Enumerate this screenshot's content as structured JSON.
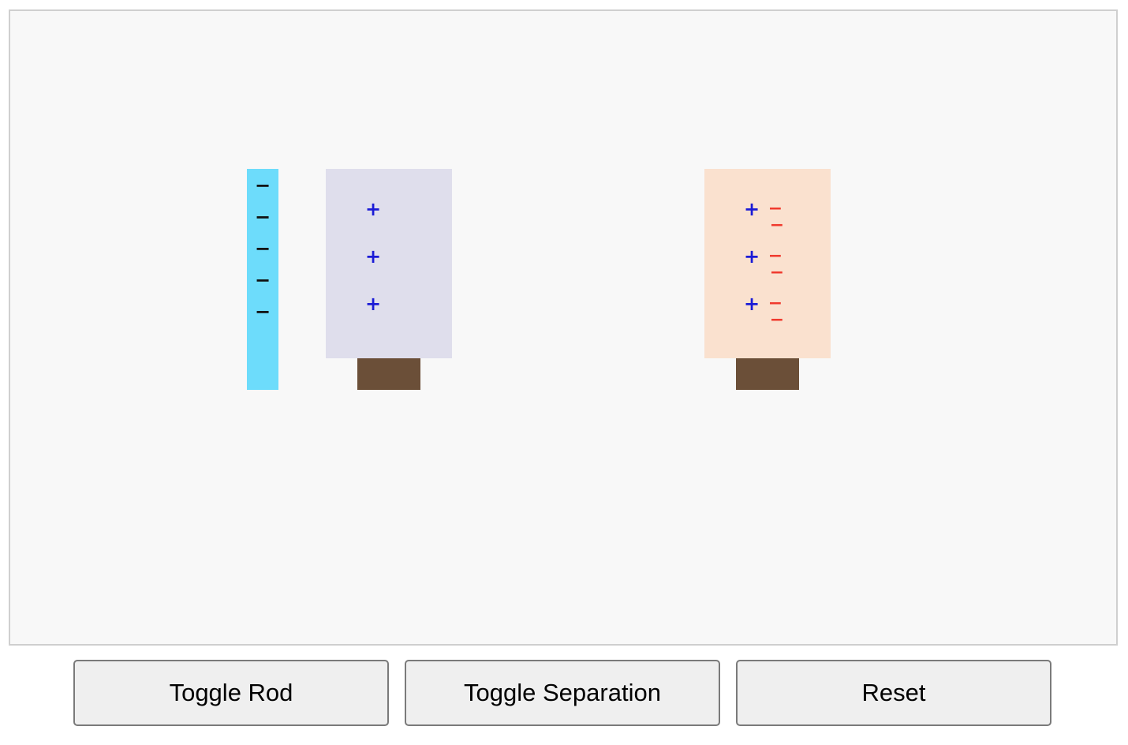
{
  "scene": {
    "rod": {
      "color": "#6ddcfb",
      "charge_color": "#111111",
      "charges": [
        "−",
        "−",
        "−",
        "−",
        "−"
      ]
    },
    "sphere_left": {
      "color": "#dfdeec",
      "charge_color": "#1b1bd6",
      "charges": [
        "+",
        "+",
        "+"
      ]
    },
    "sphere_right": {
      "color": "#fae1cf",
      "positive_color": "#1b1bd6",
      "negative_color": "#f03a2e",
      "positive_charges": [
        "+",
        "+",
        "+"
      ],
      "negative_charges": [
        "−",
        "−",
        "−",
        "−",
        "−",
        "−"
      ]
    },
    "stand_color": "#6b4f38"
  },
  "controls": {
    "toggle_rod_label": "Toggle Rod",
    "toggle_separation_label": "Toggle Separation",
    "reset_label": "Reset"
  }
}
